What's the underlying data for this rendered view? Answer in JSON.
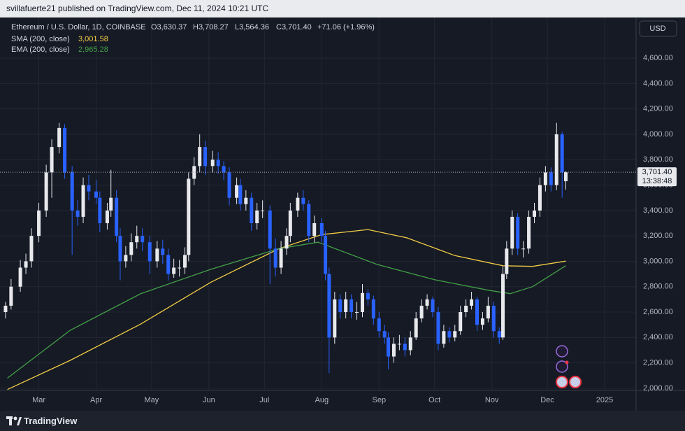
{
  "header": {
    "publisher": "svillafuerte21 published on TradingView.com, Dec 11, 2024 10:21 UTC"
  },
  "footer": {
    "brand": "TradingView"
  },
  "chart_data": {
    "type": "candlestick",
    "title": "Ethereum / U.S. Dollar, 1D, COINBASE",
    "ohlc_header": [
      "O3,630.37",
      "H3,708.27",
      "L3,564.36",
      "C3,701.40"
    ],
    "change": "+71.06 (+1.96%)",
    "currency": "USD",
    "last_price_label": "3,701.40",
    "countdown": "13:38:48",
    "up_color": "#e8e9ed",
    "down_color": "#2962ff",
    "grid": true,
    "xlim": [
      40,
      384
    ],
    "ylim": [
      1983,
      4920
    ],
    "xticks": [
      {
        "value": 61,
        "label": "Mar"
      },
      {
        "value": 92,
        "label": "Apr"
      },
      {
        "value": 122,
        "label": "May"
      },
      {
        "value": 153,
        "label": "Jun"
      },
      {
        "value": 183,
        "label": "Jul"
      },
      {
        "value": 214,
        "label": "Aug"
      },
      {
        "value": 245,
        "label": "Sep"
      },
      {
        "value": 275,
        "label": "Oct"
      },
      {
        "value": 306,
        "label": "Nov"
      },
      {
        "value": 336,
        "label": "Dec"
      },
      {
        "value": 367,
        "label": "2025"
      }
    ],
    "yticks": [
      {
        "value": 2000,
        "label": "2,000.00"
      },
      {
        "value": 2200,
        "label": "2,200.00"
      },
      {
        "value": 2400,
        "label": "2,400.00"
      },
      {
        "value": 2600,
        "label": "2,600.00"
      },
      {
        "value": 2800,
        "label": "2,800.00"
      },
      {
        "value": 3000,
        "label": "3,000.00"
      },
      {
        "value": 3200,
        "label": "3,200.00"
      },
      {
        "value": 3400,
        "label": "3,400.00"
      },
      {
        "value": 3600,
        "label": "3,600.00"
      },
      {
        "value": 3800,
        "label": "3,800.00"
      },
      {
        "value": 4000,
        "label": "4,000.00"
      },
      {
        "value": 4200,
        "label": "4,200.00"
      },
      {
        "value": 4400,
        "label": "4,400.00"
      },
      {
        "value": 4600,
        "label": "4,600.00"
      }
    ],
    "x": [
      43,
      46,
      51,
      54,
      57,
      61,
      65,
      68,
      72,
      75,
      79,
      82,
      85,
      88,
      92,
      94,
      98,
      100,
      103,
      105,
      108,
      111,
      114,
      117,
      121,
      125,
      128,
      131,
      134,
      137,
      140,
      142,
      145,
      148,
      151,
      155,
      158,
      161,
      164,
      168,
      170,
      173,
      176,
      179,
      182,
      186,
      189,
      192,
      195,
      197,
      201,
      204,
      207,
      210,
      214,
      216,
      218,
      221,
      224,
      227,
      230,
      233,
      236,
      239,
      242,
      245,
      248,
      250,
      253,
      256,
      259,
      262,
      265,
      268,
      271,
      274,
      277,
      280,
      283,
      286,
      289,
      292,
      295,
      298,
      301,
      304,
      307,
      310,
      312,
      314,
      317,
      320,
      323,
      326,
      329,
      332,
      335,
      338,
      341,
      344,
      346
    ],
    "ohlc": [
      [
        2600,
        2680,
        2550,
        2650
      ],
      [
        2650,
        2860,
        2620,
        2800
      ],
      [
        2800,
        3010,
        2760,
        2950
      ],
      [
        2950,
        3060,
        2900,
        3000
      ],
      [
        3000,
        3260,
        2950,
        3200
      ],
      [
        3200,
        3460,
        3150,
        3400
      ],
      [
        3400,
        3760,
        3350,
        3700
      ],
      [
        3700,
        3960,
        3500,
        3900
      ],
      [
        3900,
        4090,
        3850,
        4050
      ],
      [
        4050,
        4080,
        3650,
        3700
      ],
      [
        3700,
        3750,
        3050,
        3400
      ],
      [
        3400,
        3480,
        3280,
        3350
      ],
      [
        3350,
        3660,
        3300,
        3600
      ],
      [
        3600,
        3680,
        3480,
        3550
      ],
      [
        3550,
        3640,
        3450,
        3500
      ],
      [
        3500,
        3550,
        3230,
        3300
      ],
      [
        3300,
        3460,
        3250,
        3400
      ],
      [
        3400,
        3720,
        3350,
        3500
      ],
      [
        3500,
        3560,
        3150,
        3200
      ],
      [
        3200,
        3260,
        2850,
        3000
      ],
      [
        3000,
        3120,
        2950,
        3050
      ],
      [
        3050,
        3220,
        3000,
        3150
      ],
      [
        3150,
        3280,
        3100,
        3200
      ],
      [
        3200,
        3260,
        3080,
        3150
      ],
      [
        3150,
        3200,
        2900,
        3000
      ],
      [
        3000,
        3160,
        2950,
        3100
      ],
      [
        3100,
        3170,
        2980,
        3050
      ],
      [
        3050,
        3100,
        2850,
        2900
      ],
      [
        2900,
        3020,
        2870,
        2950
      ],
      [
        2950,
        3010,
        2880,
        2950
      ],
      [
        2950,
        3110,
        2900,
        3050
      ],
      [
        3050,
        3700,
        3000,
        3650
      ],
      [
        3650,
        3820,
        3600,
        3750
      ],
      [
        3750,
        4000,
        3700,
        3900
      ],
      [
        3900,
        3950,
        3680,
        3750
      ],
      [
        3750,
        3870,
        3700,
        3800
      ],
      [
        3800,
        3860,
        3690,
        3750
      ],
      [
        3750,
        3790,
        3640,
        3700
      ],
      [
        3700,
        3740,
        3440,
        3500
      ],
      [
        3500,
        3660,
        3450,
        3600
      ],
      [
        3600,
        3650,
        3400,
        3450
      ],
      [
        3450,
        3560,
        3400,
        3500
      ],
      [
        3500,
        3540,
        3240,
        3300
      ],
      [
        3300,
        3460,
        3250,
        3400
      ],
      [
        3400,
        3480,
        3340,
        3400
      ],
      [
        3400,
        3440,
        2820,
        3100
      ],
      [
        3100,
        3180,
        2880,
        2950
      ],
      [
        2950,
        3160,
        2900,
        3100
      ],
      [
        3100,
        3260,
        3050,
        3200
      ],
      [
        3200,
        3460,
        3150,
        3400
      ],
      [
        3400,
        3540,
        3350,
        3500
      ],
      [
        3500,
        3560,
        3400,
        3450
      ],
      [
        3450,
        3480,
        3150,
        3200
      ],
      [
        3200,
        3360,
        3150,
        3300
      ],
      [
        3300,
        3340,
        3150,
        3200
      ],
      [
        3200,
        3240,
        2850,
        2900
      ],
      [
        2900,
        2950,
        2120,
        2400
      ],
      [
        2400,
        2760,
        2350,
        2700
      ],
      [
        2700,
        2740,
        2550,
        2600
      ],
      [
        2600,
        2760,
        2550,
        2700
      ],
      [
        2700,
        2740,
        2550,
        2600
      ],
      [
        2600,
        2680,
        2540,
        2600
      ],
      [
        2600,
        2820,
        2560,
        2750
      ],
      [
        2750,
        2780,
        2650,
        2700
      ],
      [
        2700,
        2730,
        2500,
        2550
      ],
      [
        2550,
        2600,
        2400,
        2450
      ],
      [
        2450,
        2500,
        2350,
        2400
      ],
      [
        2400,
        2440,
        2150,
        2250
      ],
      [
        2250,
        2400,
        2200,
        2350
      ],
      [
        2350,
        2420,
        2300,
        2350
      ],
      [
        2350,
        2400,
        2250,
        2300
      ],
      [
        2300,
        2450,
        2260,
        2400
      ],
      [
        2400,
        2600,
        2380,
        2550
      ],
      [
        2550,
        2700,
        2520,
        2650
      ],
      [
        2650,
        2740,
        2620,
        2700
      ],
      [
        2700,
        2720,
        2560,
        2600
      ],
      [
        2600,
        2640,
        2300,
        2350
      ],
      [
        2350,
        2500,
        2320,
        2450
      ],
      [
        2450,
        2480,
        2360,
        2400
      ],
      [
        2400,
        2500,
        2370,
        2450
      ],
      [
        2450,
        2650,
        2420,
        2600
      ],
      [
        2600,
        2700,
        2560,
        2650
      ],
      [
        2650,
        2760,
        2620,
        2700
      ],
      [
        2700,
        2720,
        2450,
        2500
      ],
      [
        2500,
        2600,
        2460,
        2550
      ],
      [
        2550,
        2720,
        2520,
        2650
      ],
      [
        2650,
        2680,
        2400,
        2450
      ],
      [
        2450,
        2480,
        2350,
        2400
      ],
      [
        2400,
        2960,
        2380,
        2900
      ],
      [
        2900,
        3160,
        2860,
        3100
      ],
      [
        3100,
        3400,
        3050,
        3350
      ],
      [
        3350,
        3380,
        3050,
        3100
      ],
      [
        3100,
        3160,
        3030,
        3100
      ],
      [
        3100,
        3400,
        3060,
        3350
      ],
      [
        3350,
        3460,
        3300,
        3400
      ],
      [
        3400,
        3660,
        3350,
        3600
      ],
      [
        3600,
        3750,
        3550,
        3700
      ],
      [
        3700,
        3740,
        3550,
        3600
      ],
      [
        3600,
        4090,
        3560,
        4000
      ],
      [
        4000,
        4020,
        3500,
        3700
      ],
      [
        3630.37,
        3708.27,
        3564.36,
        3701.4
      ]
    ],
    "lines": [
      {
        "name": "SMA (200, close)",
        "value_label": "3,001.58",
        "color": "#f2cd45",
        "x": [
          44,
          78,
          116,
          154,
          191,
          214,
          239,
          260,
          286,
          312,
          328,
          346
        ],
        "values": [
          1990,
          2220,
          2505,
          2835,
          3100,
          3210,
          3250,
          3185,
          3045,
          2965,
          2960,
          3001.58
        ]
      },
      {
        "name": "EMA (200, close)",
        "value_label": "2,965.28",
        "color": "#43a047",
        "x": [
          44,
          78,
          116,
          154,
          191,
          212,
          244,
          275,
          305,
          316,
          328,
          346
        ],
        "values": [
          2080,
          2457,
          2744,
          2937,
          3100,
          3150,
          2975,
          2855,
          2770,
          2745,
          2800,
          2965.28
        ]
      }
    ]
  }
}
